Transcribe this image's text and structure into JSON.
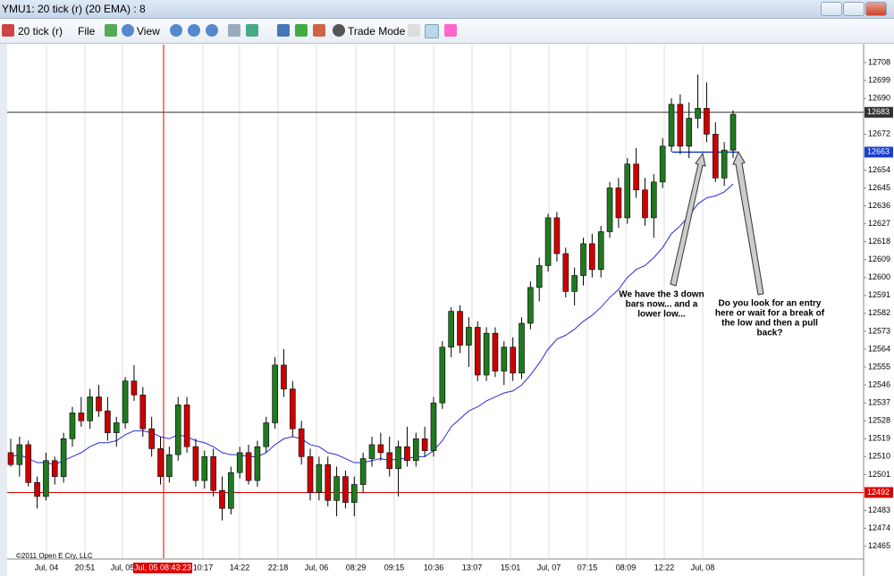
{
  "window": {
    "title": "YMU1: 20 tick (r) (20 EMA) : 8"
  },
  "toolbar": {
    "interval": "20 tick (r)",
    "file": "File",
    "view": "View",
    "trade_mode": "Trade Mode"
  },
  "copyright": "©2011 Open E Cry, LLC",
  "chart_data": {
    "type": "candlestick",
    "x_labels": [
      "Jul, 04",
      "20:51",
      "Jul, 05",
      "10:17",
      "14:22",
      "22:18",
      "Jul, 06",
      "08:29",
      "09:15",
      "10:36",
      "13:07",
      "15:01",
      "Jul, 07",
      "07:15",
      "08:09",
      "12:22",
      "Jul, 08"
    ],
    "crosshair_label": "Jul, 05 08:43:23",
    "open": [
      12512,
      12506,
      12516,
      12497,
      12490,
      12508,
      12500,
      12519,
      12532,
      12528,
      12540,
      12533,
      12522,
      12527,
      12548,
      12541,
      12524,
      12514,
      12500,
      12511,
      12536,
      12515,
      12498,
      12510,
      12493,
      12484,
      12502,
      12512,
      12498,
      12515,
      12527,
      12556,
      12544,
      12524,
      12510,
      12492,
      12506,
      12488,
      12500,
      12487,
      12496,
      12509,
      12516,
      12512,
      12504,
      12515,
      12508,
      12519,
      12513,
      12537,
      12565,
      12583,
      12566,
      12575,
      12551,
      12572,
      12553,
      12565,
      12552,
      12577,
      12595,
      12606,
      12630,
      12612,
      12593,
      12601,
      12617,
      12604,
      12623,
      12645,
      12630,
      12657,
      12644,
      12630,
      12648,
      12666,
      12687,
      12666,
      12680,
      12685,
      12672,
      12650,
      12664
    ],
    "high": [
      12519,
      12520,
      12518,
      12500,
      12512,
      12510,
      12522,
      12535,
      12540,
      12544,
      12546,
      12540,
      12530,
      12550,
      12556,
      12545,
      12530,
      12520,
      12515,
      12540,
      12540,
      12519,
      12513,
      12514,
      12500,
      12505,
      12515,
      12516,
      12518,
      12530,
      12560,
      12564,
      12548,
      12528,
      12514,
      12510,
      12510,
      12505,
      12503,
      12500,
      12512,
      12520,
      12522,
      12520,
      12518,
      12525,
      12522,
      12525,
      12540,
      12568,
      12585,
      12586,
      12580,
      12578,
      12575,
      12575,
      12568,
      12570,
      12580,
      12598,
      12610,
      12632,
      12633,
      12615,
      12605,
      12620,
      12622,
      12626,
      12648,
      12650,
      12660,
      12665,
      12650,
      12652,
      12670,
      12690,
      12692,
      12688,
      12702,
      12698,
      12678,
      12668,
      12684
    ],
    "low": [
      12505,
      12500,
      12495,
      12484,
      12488,
      12496,
      12497,
      12515,
      12525,
      12524,
      12530,
      12518,
      12515,
      12524,
      12538,
      12520,
      12510,
      12496,
      12497,
      12508,
      12512,
      12495,
      12494,
      12490,
      12478,
      12481,
      12499,
      12496,
      12495,
      12512,
      12524,
      12540,
      12520,
      12506,
      12488,
      12488,
      12485,
      12480,
      12484,
      12480,
      12492,
      12505,
      12508,
      12500,
      12490,
      12505,
      12505,
      12510,
      12510,
      12534,
      12560,
      12562,
      12555,
      12548,
      12548,
      12550,
      12546,
      12548,
      12549,
      12574,
      12588,
      12603,
      12608,
      12590,
      12586,
      12596,
      12600,
      12600,
      12620,
      12625,
      12627,
      12640,
      12626,
      12620,
      12645,
      12663,
      12662,
      12660,
      12675,
      12668,
      12648,
      12646,
      12660
    ],
    "close": [
      12506,
      12516,
      12497,
      12490,
      12508,
      12500,
      12519,
      12532,
      12528,
      12540,
      12533,
      12522,
      12527,
      12548,
      12541,
      12524,
      12514,
      12500,
      12511,
      12536,
      12515,
      12498,
      12510,
      12493,
      12484,
      12502,
      12512,
      12498,
      12515,
      12527,
      12556,
      12544,
      12524,
      12510,
      12492,
      12506,
      12488,
      12500,
      12487,
      12496,
      12509,
      12516,
      12512,
      12504,
      12515,
      12508,
      12519,
      12513,
      12537,
      12565,
      12583,
      12566,
      12575,
      12551,
      12572,
      12553,
      12565,
      12552,
      12577,
      12595,
      12606,
      12630,
      12612,
      12593,
      12601,
      12617,
      12604,
      12623,
      12645,
      12630,
      12657,
      12644,
      12630,
      12648,
      12666,
      12687,
      12666,
      12680,
      12685,
      12672,
      12650,
      12664,
      12682
    ],
    "ema": {
      "name": "20 EMA",
      "color": "#2a2ae0",
      "values": [
        12510,
        12511,
        12509,
        12507,
        12507,
        12506,
        12508,
        12510,
        12512,
        12515,
        12517,
        12517,
        12518,
        12521,
        12523,
        12523,
        12522,
        12520,
        12519,
        12521,
        12520,
        12518,
        12517,
        12515,
        12512,
        12511,
        12511,
        12510,
        12510,
        12512,
        12516,
        12519,
        12520,
        12519,
        12516,
        12515,
        12512,
        12511,
        12509,
        12507,
        12507,
        12508,
        12509,
        12508,
        12509,
        12509,
        12510,
        12510,
        12513,
        12518,
        12525,
        12529,
        12533,
        12535,
        12538,
        12540,
        12542,
        12543,
        12546,
        12551,
        12557,
        12564,
        12569,
        12571,
        12574,
        12578,
        12581,
        12585,
        12590,
        12594,
        12600,
        12604,
        12606,
        12610,
        12615,
        12622,
        12626,
        12631,
        12637,
        12640,
        12641,
        12643,
        12647
      ]
    },
    "up_color": "#1f7a1f",
    "down_color": "#cc0000",
    "ylim": [
      12459,
      12717
    ],
    "yticks": [
      12708,
      12699,
      12690,
      12672,
      12654,
      12645,
      12636,
      12627,
      12618,
      12609,
      12600,
      12591,
      12582,
      12573,
      12564,
      12555,
      12546,
      12537,
      12528,
      12519,
      12510,
      12501,
      12483,
      12474,
      12465
    ],
    "price_lines": [
      {
        "value": 12683,
        "color": "#333333"
      },
      {
        "value": 12663,
        "color": "#1a3fd0"
      },
      {
        "value": 12492,
        "color": "#e00000"
      }
    ],
    "annotations": [
      [
        "We have the 3  down",
        "bars now... and a",
        "lower low..."
      ],
      [
        "Do you look for an entry",
        "here or wait for a break of",
        "the low and then a pull",
        "back?"
      ]
    ]
  }
}
